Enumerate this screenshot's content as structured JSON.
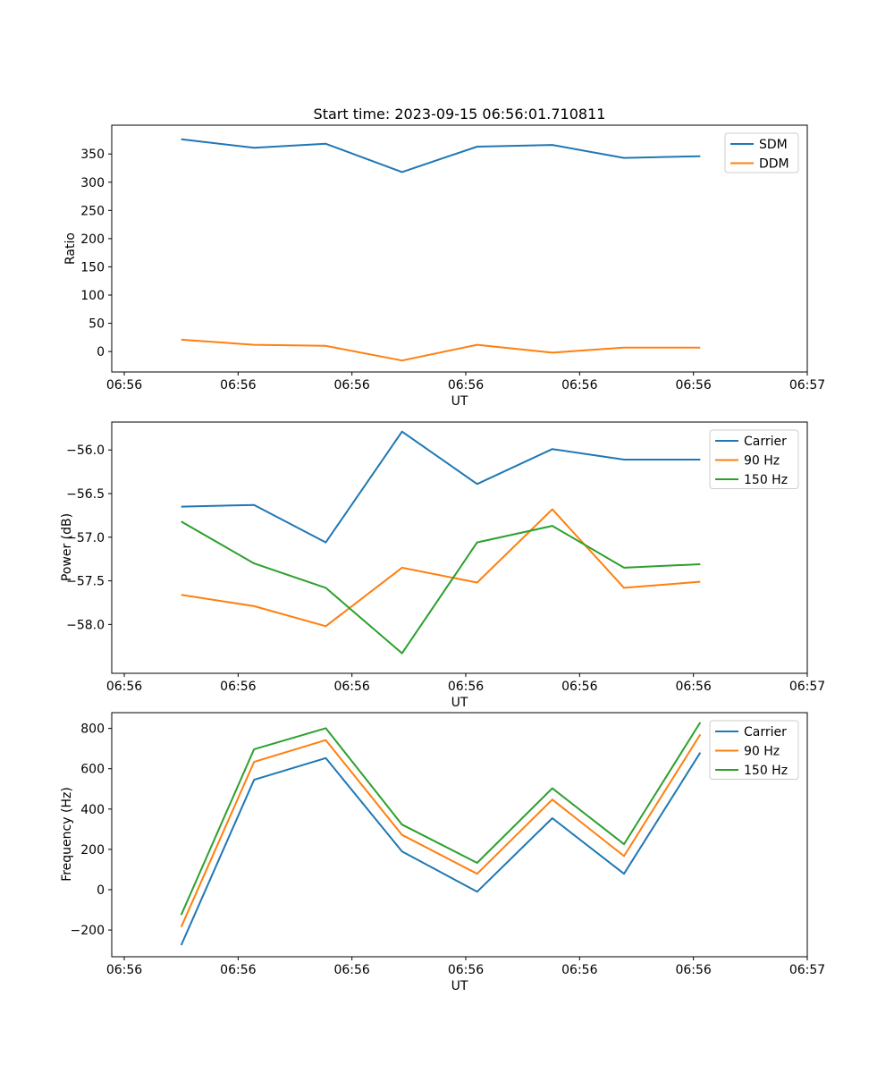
{
  "figure": {
    "title": "Start time: 2023-09-15 06:56:01.710811",
    "background": "#ffffff",
    "accent_colors": {
      "blue": "#1f77b4",
      "orange": "#ff7f0e",
      "green": "#2ca02c"
    }
  },
  "chart_data": [
    {
      "type": "line",
      "title": "",
      "xlabel": "UT",
      "ylabel": "Ratio",
      "grid": false,
      "legend_position": "upper right",
      "x_seconds_after_065600": [
        5.0,
        11.4,
        17.7,
        24.4,
        31.0,
        37.6,
        43.9,
        50.6
      ],
      "xlim_seconds": [
        -1.1,
        60
      ],
      "xticks_seconds": [
        0,
        10,
        20,
        30,
        40,
        50,
        60
      ],
      "xtick_labels": [
        "06:56",
        "06:56",
        "06:56",
        "06:56",
        "06:56",
        "06:56",
        "06:57"
      ],
      "ylim": [
        -36.2,
        401.0
      ],
      "yticks": [
        0,
        50,
        100,
        150,
        200,
        250,
        300,
        350
      ],
      "ytick_labels": [
        "0",
        "50",
        "100",
        "150",
        "200",
        "250",
        "300",
        "350"
      ],
      "series": [
        {
          "name": "SDM",
          "color": "#1f77b4",
          "values": [
            376,
            361,
            368,
            318,
            363,
            366,
            343,
            346
          ]
        },
        {
          "name": "DDM",
          "color": "#ff7f0e",
          "values": [
            21,
            12,
            10,
            -16,
            12,
            -2,
            7,
            7
          ]
        }
      ]
    },
    {
      "type": "line",
      "title": "",
      "xlabel": "UT",
      "ylabel": "Power (dB)",
      "grid": false,
      "legend_position": "upper right",
      "x_seconds_after_065600": [
        5.0,
        11.4,
        17.7,
        24.4,
        31.0,
        37.6,
        43.9,
        50.6
      ],
      "xlim_seconds": [
        -1.1,
        60
      ],
      "xticks_seconds": [
        0,
        10,
        20,
        30,
        40,
        50,
        60
      ],
      "xtick_labels": [
        "06:56",
        "06:56",
        "06:56",
        "06:56",
        "06:56",
        "06:56",
        "06:57"
      ],
      "ylim": [
        -58.56,
        -55.68
      ],
      "yticks": [
        -56.0,
        -56.5,
        -57.0,
        -57.5,
        -58.0
      ],
      "ytick_labels": [
        "−56.0",
        "−56.5",
        "−57.0",
        "−57.5",
        "−58.0"
      ],
      "series": [
        {
          "name": "Carrier",
          "color": "#1f77b4",
          "values": [
            -56.65,
            -56.63,
            -57.06,
            -55.79,
            -56.39,
            -55.99,
            -56.11,
            -56.11
          ]
        },
        {
          "name": "90 Hz",
          "color": "#ff7f0e",
          "values": [
            -57.66,
            -57.79,
            -58.02,
            -57.35,
            -57.52,
            -56.68,
            -57.58,
            -57.51
          ]
        },
        {
          "name": "150 Hz",
          "color": "#2ca02c",
          "values": [
            -56.82,
            -57.3,
            -57.58,
            -58.33,
            -57.06,
            -56.87,
            -57.35,
            -57.31
          ]
        }
      ]
    },
    {
      "type": "line",
      "title": "",
      "xlabel": "UT",
      "ylabel": "Frequency (Hz)",
      "grid": false,
      "legend_position": "upper right",
      "x_seconds_after_065600": [
        5.0,
        11.4,
        17.7,
        24.4,
        31.0,
        37.6,
        43.9,
        50.6
      ],
      "xlim_seconds": [
        -1.1,
        60
      ],
      "xticks_seconds": [
        0,
        10,
        20,
        30,
        40,
        50,
        60
      ],
      "xtick_labels": [
        "06:56",
        "06:56",
        "06:56",
        "06:56",
        "06:56",
        "06:56",
        "06:57"
      ],
      "ylim": [
        -332.6,
        878.2
      ],
      "yticks": [
        -200,
        0,
        200,
        400,
        600,
        800
      ],
      "ytick_labels": [
        "−200",
        "0",
        "200",
        "400",
        "600",
        "800"
      ],
      "series": [
        {
          "name": "Carrier",
          "color": "#1f77b4",
          "values": [
            -275,
            545,
            653,
            190,
            -10,
            355,
            79,
            680
          ]
        },
        {
          "name": "90 Hz",
          "color": "#ff7f0e",
          "values": [
            -185,
            634,
            742,
            272,
            79,
            447,
            167,
            770
          ]
        },
        {
          "name": "150 Hz",
          "color": "#2ca02c",
          "values": [
            -125,
            697,
            801,
            323,
            133,
            503,
            226,
            830
          ]
        }
      ]
    }
  ]
}
